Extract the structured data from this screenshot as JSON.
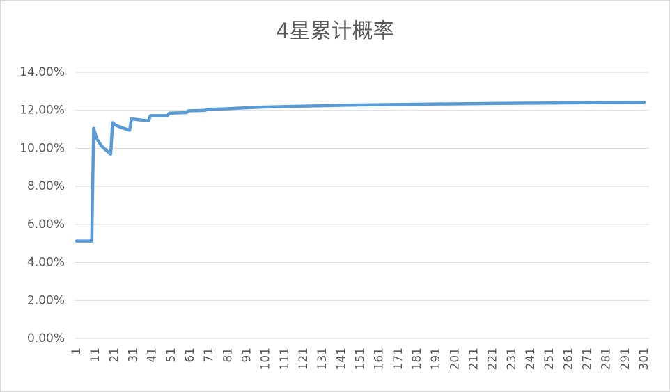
{
  "chart_data": {
    "type": "line",
    "title": "4星累计概率",
    "x": [
      1,
      9,
      10,
      11,
      12,
      14,
      16,
      19,
      20,
      22,
      25,
      29,
      30,
      34,
      39,
      40,
      49,
      50,
      59,
      60,
      69,
      70,
      80,
      90,
      100,
      120,
      150,
      180,
      220,
      260,
      301
    ],
    "series": [
      {
        "color": "#5b9bd5",
        "values": [
          5.13,
          5.13,
          11.05,
          10.7,
          10.45,
          10.15,
          9.95,
          9.7,
          11.35,
          11.2,
          11.08,
          10.95,
          11.55,
          11.5,
          11.45,
          11.72,
          11.72,
          11.85,
          11.88,
          11.97,
          12.0,
          12.05,
          12.08,
          12.13,
          12.17,
          12.22,
          12.28,
          12.32,
          12.36,
          12.39,
          12.42
        ]
      }
    ],
    "xlim": [
      1,
      301
    ],
    "xticks": [
      1,
      11,
      21,
      31,
      41,
      51,
      61,
      71,
      81,
      91,
      101,
      111,
      121,
      131,
      141,
      151,
      161,
      171,
      181,
      191,
      201,
      211,
      221,
      231,
      241,
      251,
      261,
      271,
      281,
      291,
      301
    ],
    "ylim": [
      0,
      14
    ],
    "yticks": [
      {
        "value": 0,
        "label": "0.00%"
      },
      {
        "value": 2,
        "label": "2.00%"
      },
      {
        "value": 4,
        "label": "4.00%"
      },
      {
        "value": 6,
        "label": "6.00%"
      },
      {
        "value": 8,
        "label": "8.00%"
      },
      {
        "value": 10,
        "label": "10.00%"
      },
      {
        "value": 12,
        "label": "12.00%"
      },
      {
        "value": 14,
        "label": "14.00%"
      }
    ],
    "grid": true
  }
}
